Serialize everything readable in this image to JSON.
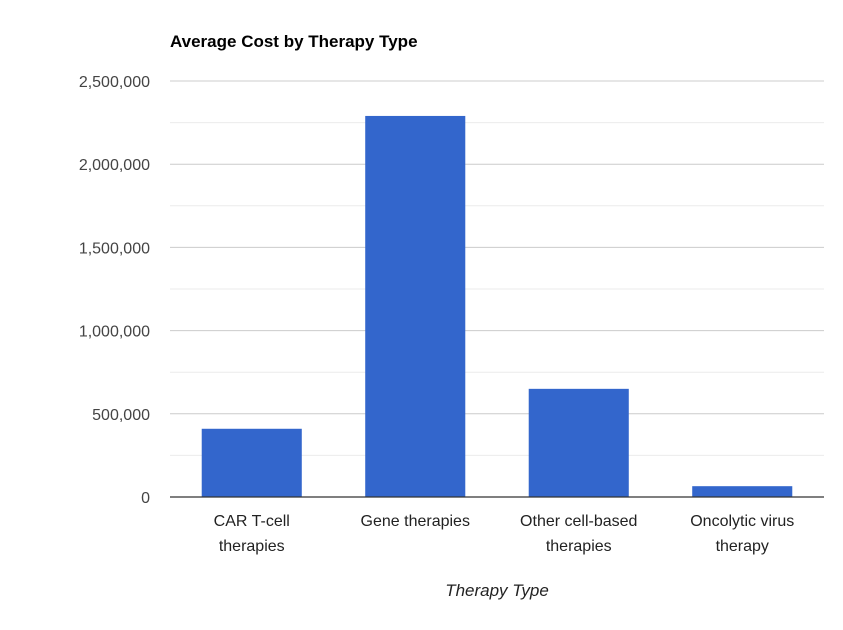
{
  "chart_data": {
    "type": "bar",
    "title": "Average Cost by Therapy Type",
    "xlabel": "Therapy Type",
    "ylabel": "",
    "categories": [
      [
        "CAR T-cell",
        "therapies"
      ],
      [
        "Gene therapies"
      ],
      [
        "Other cell-based",
        "therapies"
      ],
      [
        "Oncolytic virus",
        "therapy"
      ]
    ],
    "values": [
      410000,
      2290000,
      650000,
      65000
    ],
    "ylim": [
      0,
      2500000
    ],
    "y_ticks": [
      0,
      500000,
      1000000,
      1500000,
      2000000,
      2500000
    ],
    "y_tick_labels": [
      "0",
      "500,000",
      "1,000,000",
      "1,500,000",
      "2,000,000",
      "2,500,000"
    ],
    "grid": true,
    "minor_grid": true,
    "legend": "none",
    "colors": {
      "bar": "#3366cc",
      "grid": "#cccccc",
      "minor_grid": "#ebebeb",
      "baseline": "#333333"
    }
  }
}
